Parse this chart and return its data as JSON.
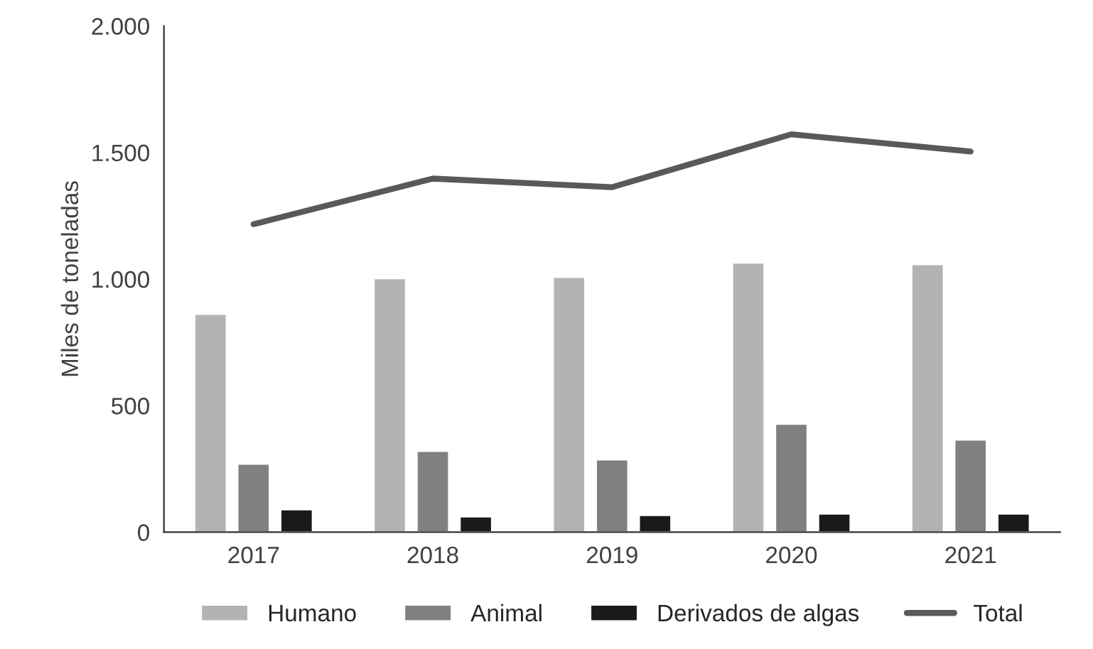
{
  "chart_data": {
    "type": "bar",
    "ylabel": "Miles de toneladas",
    "categories": [
      "2017",
      "2018",
      "2019",
      "2020",
      "2021"
    ],
    "series": [
      {
        "name": "Humano",
        "color": "#b3b3b3",
        "values": [
          862,
          1003,
          1008,
          1065,
          1059
        ]
      },
      {
        "name": "Animal",
        "color": "#808080",
        "values": [
          270,
          321,
          287,
          428,
          366
        ]
      },
      {
        "name": "Derivados de algas",
        "color": "#1a1a1a",
        "values": [
          90,
          62,
          68,
          73,
          73
        ]
      },
      {
        "name": "Total",
        "color": "#595959",
        "type": "line",
        "values": [
          1217,
          1397,
          1363,
          1572,
          1504
        ]
      }
    ],
    "ylim": [
      0,
      2000
    ],
    "yticks": [
      {
        "value": 0,
        "label": "0"
      },
      {
        "value": 500,
        "label": "500"
      },
      {
        "value": 1000,
        "label": "1.000"
      },
      {
        "value": 1500,
        "label": "1.500"
      },
      {
        "value": 2000,
        "label": "2.000"
      }
    ],
    "grid": false,
    "legend": "bottom",
    "marker": "none",
    "line_style": "solid"
  }
}
